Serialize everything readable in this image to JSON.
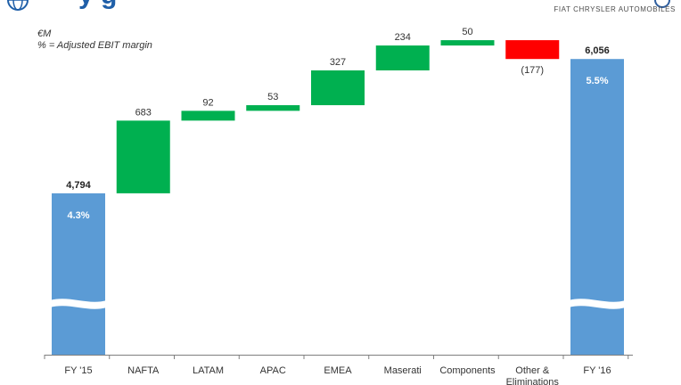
{
  "header": {
    "title_fragment": "y g",
    "brand": "FIAT CHRYSLER AUTOMOBILES",
    "units_line1": "€M",
    "units_line2": "% = Adjusted EBIT margin"
  },
  "colors": {
    "total": "#5b9bd5",
    "increase": "#00b050",
    "decrease": "#ff0000",
    "axis": "#7f7f7f"
  },
  "chart_data": {
    "type": "bar",
    "subtype": "waterfall",
    "categories": [
      "FY '15",
      "NAFTA",
      "LATAM",
      "APAC",
      "EMEA",
      "Maserati",
      "Components",
      "Other & Eliminations",
      "FY '16"
    ],
    "category_labels": [
      [
        "FY '15"
      ],
      [
        "NAFTA"
      ],
      [
        "LATAM"
      ],
      [
        "APAC"
      ],
      [
        "EMEA"
      ],
      [
        "Maserati"
      ],
      [
        "Components"
      ],
      [
        "Other &",
        "Eliminations"
      ],
      [
        "FY '16"
      ]
    ],
    "values": [
      4794,
      683,
      92,
      53,
      327,
      234,
      50,
      -177,
      6056
    ],
    "value_labels": [
      "4,794",
      "683",
      "92",
      "53",
      "327",
      "234",
      "50",
      "(177)",
      "6,056"
    ],
    "kinds": [
      "total",
      "increase",
      "increase",
      "increase",
      "increase",
      "increase",
      "increase",
      "decrease",
      "total"
    ],
    "margin_labels": [
      "4.3%",
      "",
      "",
      "",
      "",
      "",
      "",
      "",
      "5.5%"
    ],
    "axis_break": true,
    "grid": false,
    "legend": "none"
  }
}
